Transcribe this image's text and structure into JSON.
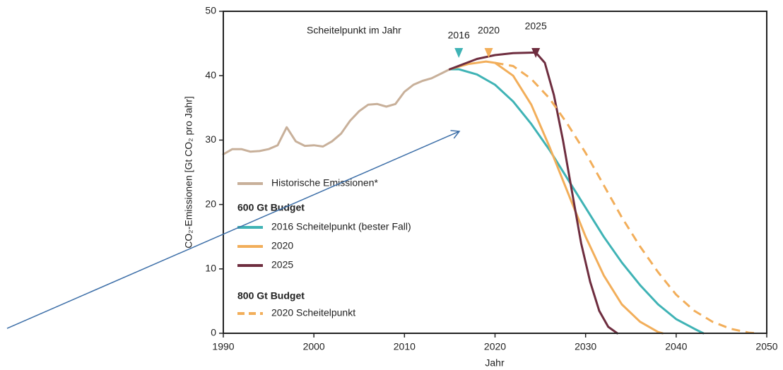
{
  "chart_data": {
    "type": "line",
    "xlabel": "Jahr",
    "ylabel": "CO₂-Emissionen [Gt CO₂ pro Jahr]",
    "annotation": "Scheitelpunkt im Jahr",
    "peak_markers": [
      {
        "label": "2016",
        "x": 2016,
        "color": "#3fb3b5"
      },
      {
        "label": "2020",
        "x": 2019.3,
        "color": "#f2ae5a"
      },
      {
        "label": "2025",
        "x": 2024.5,
        "color": "#6e2d3f"
      }
    ],
    "legend_groups": [
      "600 Gt Budget",
      "800 Gt Budget"
    ],
    "xlim": [
      1990,
      2050
    ],
    "xticks": [
      1990,
      2000,
      2010,
      2020,
      2030,
      2040,
      2050
    ],
    "ylim": [
      0,
      50
    ],
    "yticks": [
      0,
      10,
      20,
      30,
      40,
      50
    ],
    "grid": false,
    "series": [
      {
        "name": "Historische Emissionen*",
        "color": "#c8b09a",
        "dashed": false,
        "x": [
          1990,
          1991,
          1992,
          1993,
          1994,
          1995,
          1996,
          1997,
          1998,
          1999,
          2000,
          2001,
          2002,
          2003,
          2004,
          2005,
          2006,
          2007,
          2008,
          2009,
          2010,
          2011,
          2012,
          2013,
          2014,
          2015
        ],
        "values": [
          27.8,
          28.6,
          28.6,
          28.2,
          28.3,
          28.6,
          29.2,
          32,
          29.8,
          29.1,
          29.2,
          29,
          29.8,
          31,
          33,
          34.5,
          35.5,
          35.6,
          35.2,
          35.6,
          37.5,
          38.6,
          39.2,
          39.6,
          40.3,
          41
        ]
      },
      {
        "name": "2016 Scheitelpunkt (bester Fall)",
        "color": "#3fb3b5",
        "dashed": false,
        "x": [
          2015,
          2016,
          2018,
          2020,
          2022,
          2024,
          2026,
          2028,
          2030,
          2032,
          2034,
          2036,
          2038,
          2040,
          2042,
          2043
        ],
        "values": [
          41,
          41,
          40.2,
          38.6,
          36,
          32.5,
          28.5,
          24,
          19.5,
          15,
          11,
          7.5,
          4.5,
          2.2,
          0.7,
          0
        ]
      },
      {
        "name": "2020",
        "color": "#f2ae5a",
        "dashed": false,
        "x": [
          2015,
          2017,
          2019,
          2020,
          2022,
          2024,
          2026,
          2028,
          2030,
          2032,
          2034,
          2036,
          2038,
          2038.5
        ],
        "values": [
          41,
          41.8,
          42.2,
          42,
          40,
          35.5,
          29,
          22,
          15,
          9,
          4.5,
          1.8,
          0.2,
          0
        ]
      },
      {
        "name": "2025",
        "color": "#6e2d3f",
        "dashed": false,
        "x": [
          2015,
          2018,
          2020,
          2022,
          2024.5,
          2025.5,
          2026.5,
          2027.5,
          2028.5,
          2029.5,
          2030.5,
          2031.5,
          2032.5,
          2033.5
        ],
        "values": [
          41,
          42.6,
          43.2,
          43.5,
          43.6,
          42,
          37,
          30,
          22,
          14,
          8,
          3.5,
          1,
          0
        ]
      },
      {
        "name": "2020 Scheitelpunkt",
        "color": "#f2ae5a",
        "dashed": true,
        "x": [
          2020,
          2022,
          2024,
          2026,
          2028,
          2030,
          2032,
          2034,
          2036,
          2038,
          2040,
          2042,
          2044,
          2046,
          2048,
          2049
        ],
        "values": [
          42,
          41.5,
          39.5,
          36.5,
          32.5,
          28,
          23,
          18,
          13.5,
          9.5,
          6,
          3.5,
          1.8,
          0.7,
          0.1,
          0
        ]
      }
    ]
  }
}
